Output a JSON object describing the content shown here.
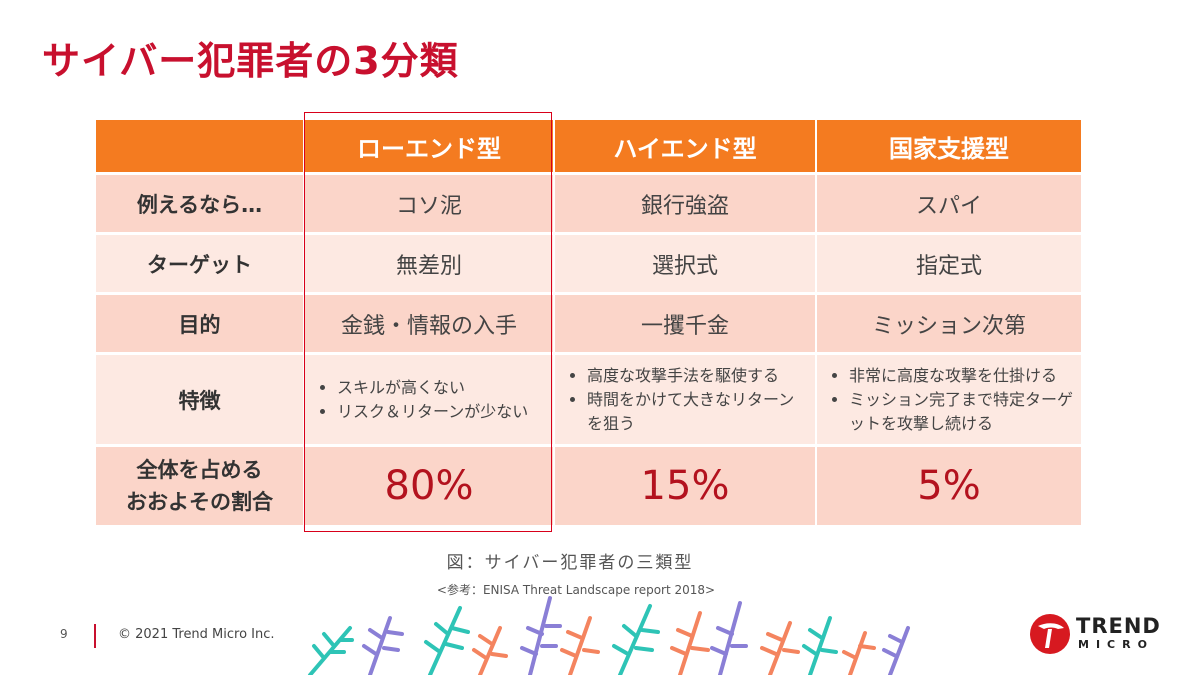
{
  "title": "サイバー犯罪者の3分類",
  "table": {
    "headers": [
      "",
      "ローエンド型",
      "ハイエンド型",
      "国家支援型"
    ],
    "rows": [
      {
        "label": "例えるなら…",
        "cells": [
          "コソ泥",
          "銀行強盗",
          "スパイ"
        ]
      },
      {
        "label": "ターゲット",
        "cells": [
          "無差別",
          "選択式",
          "指定式"
        ]
      },
      {
        "label": "目的",
        "cells": [
          "金銭・情報の入手",
          "一攫千金",
          "ミッション次第"
        ]
      }
    ],
    "features": {
      "label": "特徴",
      "cols": [
        [
          "スキルが高くない",
          "リスク＆リターンが少ない"
        ],
        [
          "高度な攻撃手法を駆使する",
          "時間をかけて大きなリターンを狙う"
        ],
        [
          "非常に高度な攻撃を仕掛ける",
          "ミッション完了まで特定ターゲットを攻撃し続ける"
        ]
      ]
    },
    "share": {
      "label_line1": "全体を占める",
      "label_line2": "おおよその割合",
      "values": [
        "80%",
        "15%",
        "5%"
      ]
    }
  },
  "caption": "図：サイバー犯罪者の三類型",
  "reference": "<参考：ENISA Threat Landscape report 2018>",
  "footer": {
    "page_number": "9",
    "copyright": "© 2021 Trend Micro Inc.",
    "logo_line1": "TREND",
    "logo_line2": "MICRO"
  },
  "colors": {
    "title": "#c8102e",
    "header_bg": "#f47b20",
    "row_dark": "#fbd5c9",
    "row_light": "#fde9e2",
    "percent": "#b3121e",
    "highlight_border": "#d8001a"
  }
}
